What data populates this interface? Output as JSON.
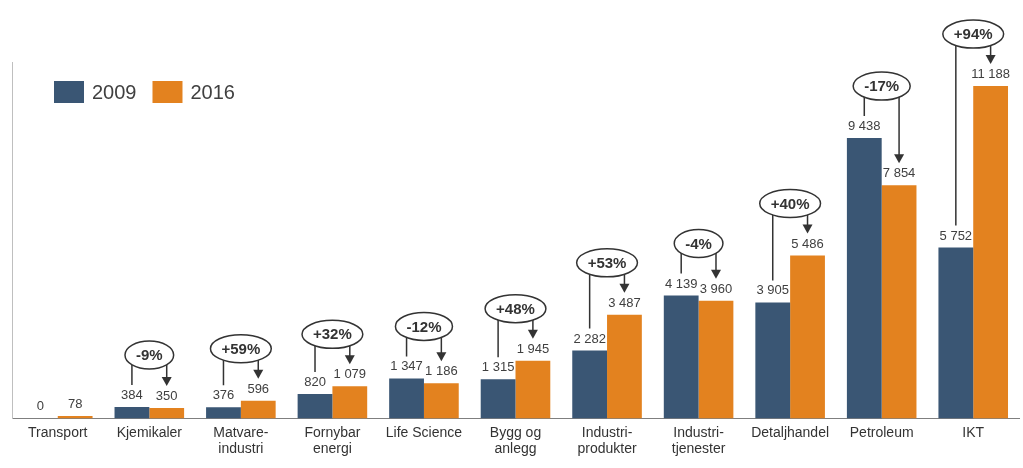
{
  "chart_data": {
    "type": "bar",
    "categories": [
      "Transport",
      "Kjemikaler",
      [
        "Matvare-",
        "industri"
      ],
      [
        "Fornybar",
        "energi"
      ],
      "Life Science",
      [
        "Bygg og",
        "anlegg"
      ],
      [
        "Industri-",
        "produkter"
      ],
      [
        "Industri-",
        "tjenester"
      ],
      "Detaljhandel",
      "Petroleum",
      "IKT"
    ],
    "series": [
      {
        "name": "2009",
        "color": "#3a5674",
        "values": [
          0,
          384,
          376,
          820,
          1347,
          1315,
          2282,
          4139,
          3905,
          9438,
          5752
        ],
        "value_labels": [
          "0",
          "384",
          "376",
          "820",
          "1 347",
          "1 315",
          "2 282",
          "4 139",
          "3 905",
          "9 438",
          "5 752"
        ]
      },
      {
        "name": "2016",
        "color": "#e3821f",
        "values": [
          78,
          350,
          596,
          1079,
          1186,
          1945,
          3487,
          3960,
          5486,
          7854,
          11188
        ],
        "value_labels": [
          "78",
          "350",
          "596",
          "1 079",
          "1 186",
          "1 945",
          "3 487",
          "3 960",
          "5 486",
          "7 854",
          "11 188"
        ]
      }
    ],
    "annotations": [
      null,
      "-9%",
      "+59%",
      "+32%",
      "-12%",
      "+48%",
      "+53%",
      "-4%",
      "+40%",
      "-17%",
      "+94%"
    ],
    "ylim": [
      0,
      12000
    ],
    "yticks": [],
    "grid": false,
    "legend": "upper left",
    "data_labels": true,
    "tick_labels": "x"
  }
}
